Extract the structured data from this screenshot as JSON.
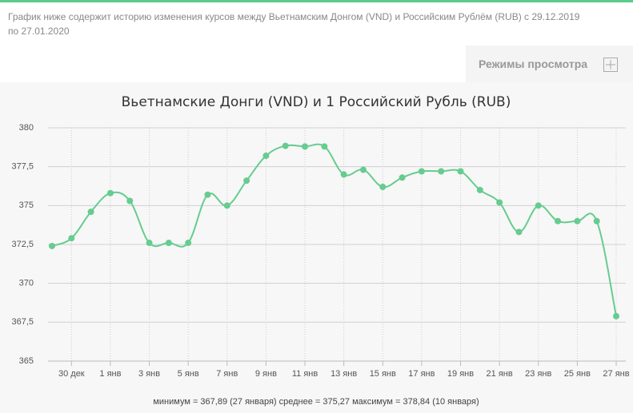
{
  "description": "График ниже содержит историю изменения курсов между Вьетнамским Донгом (VND) и Российским Рублём (RUB) с 29.12.2019 по 27.01.2020",
  "view_modes": "Режимы просмотра",
  "chart_data": {
    "type": "line",
    "title": "Вьетнамские Донги (VND) и 1 Российский Рубль (RUB)",
    "categories": [
      null,
      "30 дек",
      null,
      "1 янв",
      null,
      "3 янв",
      null,
      "5 янв",
      null,
      "7 янв",
      null,
      "9 янв",
      null,
      "11 янв",
      null,
      "13 янв",
      null,
      "15 янв",
      null,
      "17 янв",
      null,
      "19 янв",
      null,
      "21 янв",
      null,
      "23 янв",
      null,
      "25 янв",
      null,
      "27 янв"
    ],
    "values": [
      372.4,
      372.9,
      374.6,
      375.8,
      375.3,
      372.6,
      372.6,
      372.6,
      375.7,
      375.0,
      376.6,
      378.2,
      378.84,
      378.8,
      378.8,
      377.0,
      377.3,
      376.2,
      376.8,
      377.2,
      377.2,
      377.2,
      376.0,
      375.2,
      373.3,
      375.0,
      374.0,
      374.0,
      374.0,
      367.89
    ],
    "color": "#66cc8f",
    "ylim": [
      365,
      380
    ],
    "yticks": [
      365,
      {
        "value": 367.5,
        "label": "367,5"
      },
      370,
      {
        "value": 372.5,
        "label": "372,5"
      },
      375,
      {
        "value": 377.5,
        "label": "377,5"
      },
      380
    ],
    "grid": true,
    "footer": "минимум = 367,89 (27 января) среднее = 375,27 максимум = 378,84 (10 января)"
  }
}
